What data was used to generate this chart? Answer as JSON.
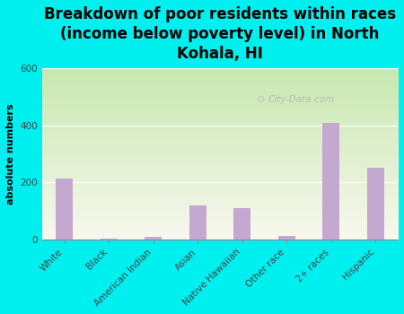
{
  "title": "Breakdown of poor residents within races\n(income below poverty level) in North\nKohala, HI",
  "categories": [
    "White",
    "Black",
    "American Indian",
    "Asian",
    "Native Hawaiian",
    "Other race",
    "2+ races",
    "Hispanic"
  ],
  "values": [
    213,
    3,
    7,
    120,
    110,
    12,
    410,
    250
  ],
  "bar_color": "#c4a8d0",
  "background_color": "#00f0f0",
  "plot_bg_top": "#c8e8b0",
  "plot_bg_bottom": "#f8f8ee",
  "ylabel": "absolute numbers",
  "ylim": [
    0,
    600
  ],
  "yticks": [
    0,
    200,
    400,
    600
  ],
  "watermark": "City-Data.com",
  "title_fontsize": 12,
  "label_fontsize": 8,
  "tick_fontsize": 7.5
}
